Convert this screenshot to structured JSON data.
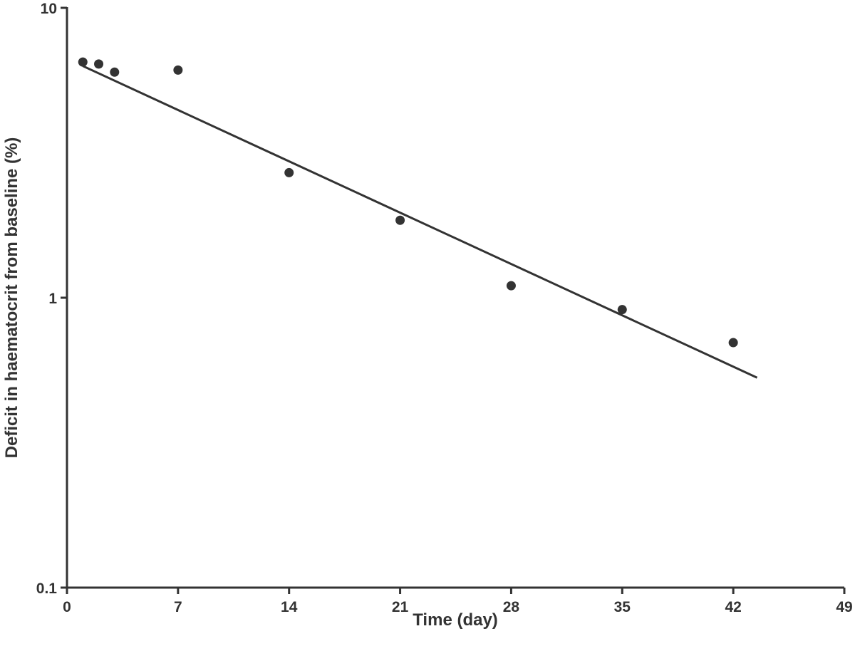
{
  "chart_data": {
    "type": "scatter",
    "xlabel": "Time (day)",
    "ylabel": "Deficit in haematocrit from baseline (%)",
    "xlim": [
      0,
      49
    ],
    "ylim": [
      0.1,
      10
    ],
    "y_scale": "log",
    "x_ticks": [
      "0",
      "7",
      "14",
      "21",
      "28",
      "35",
      "42",
      "49"
    ],
    "y_ticks": [
      "0.1",
      "1",
      "10"
    ],
    "grid": false,
    "legend": "none",
    "colors": {
      "marker": "#333333",
      "line": "#333333",
      "axis": "#333333"
    },
    "series": [
      {
        "kind": "points",
        "x": [
          1,
          2,
          3,
          7,
          14,
          21,
          28,
          35,
          42
        ],
        "y": [
          6.5,
          6.4,
          6.0,
          6.1,
          2.7,
          1.85,
          1.1,
          0.91,
          0.7
        ]
      },
      {
        "kind": "fitted-line",
        "x": [
          1,
          43.5
        ],
        "y": [
          6.3,
          0.53
        ]
      }
    ]
  }
}
